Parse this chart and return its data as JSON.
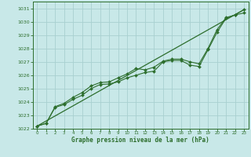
{
  "title": "Graphe pression niveau de la mer (hPa)",
  "background_color": "#c8e8e8",
  "grid_color": "#a8d0d0",
  "line_color": "#2d6e2d",
  "xlim": [
    -0.5,
    23.5
  ],
  "ylim": [
    1022,
    1031.5
  ],
  "xticks": [
    0,
    1,
    2,
    3,
    4,
    5,
    6,
    7,
    8,
    9,
    10,
    11,
    12,
    13,
    14,
    15,
    16,
    17,
    18,
    19,
    20,
    21,
    22,
    23
  ],
  "yticks": [
    1022,
    1023,
    1024,
    1025,
    1026,
    1027,
    1028,
    1029,
    1030,
    1031
  ],
  "series1_x": [
    0,
    1,
    2,
    3,
    4,
    5,
    6,
    7,
    8,
    9,
    10,
    11,
    12,
    13,
    14,
    15,
    16,
    17,
    18,
    19,
    20,
    21,
    22,
    23
  ],
  "series1_y": [
    1022.2,
    1022.4,
    1023.6,
    1023.8,
    1024.2,
    1024.5,
    1025.0,
    1025.3,
    1025.35,
    1025.5,
    1025.8,
    1026.0,
    1026.2,
    1026.3,
    1027.0,
    1027.1,
    1027.1,
    1026.75,
    1026.65,
    1027.9,
    1029.2,
    1030.25,
    1030.5,
    1030.65
  ],
  "series2_x": [
    0,
    1,
    2,
    3,
    4,
    5,
    6,
    7,
    8,
    9,
    10,
    11,
    12,
    13,
    14,
    15,
    16,
    17,
    18,
    19,
    20,
    21,
    22,
    23
  ],
  "series2_y": [
    1022.2,
    1022.4,
    1023.65,
    1023.9,
    1024.35,
    1024.7,
    1025.2,
    1025.45,
    1025.5,
    1025.8,
    1026.1,
    1026.5,
    1026.4,
    1026.6,
    1027.05,
    1027.2,
    1027.2,
    1027.0,
    1026.85,
    1028.0,
    1029.4,
    1030.3,
    1030.5,
    1030.9
  ],
  "trend_x": [
    0,
    23
  ],
  "trend_y": [
    1022.2,
    1030.9
  ]
}
